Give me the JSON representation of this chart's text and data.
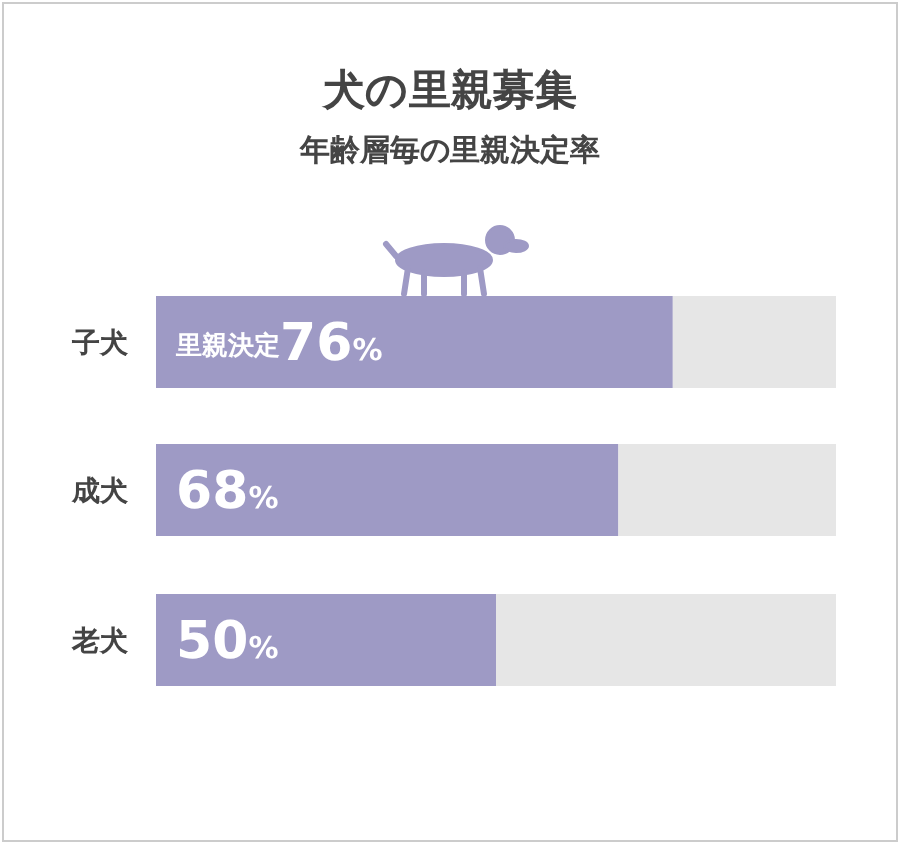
{
  "chart_data": {
    "type": "bar",
    "title": "犬の里親募集",
    "subtitle": "年齢層毎の里親決定率",
    "orientation": "horizontal",
    "stacked": true,
    "xlim": [
      0,
      100
    ],
    "tick_labels": false,
    "categories": [
      "子犬",
      "成犬",
      "老犬"
    ],
    "series": [
      {
        "color": "#9e9ac5",
        "values": [
          76,
          68,
          50
        ],
        "value_labels": [
          "$^{里親決定}$76%",
          "68%",
          "50%"
        ]
      },
      {
        "color": "#e6e6e6",
        "values": [
          24,
          32,
          50
        ]
      }
    ]
  }
}
